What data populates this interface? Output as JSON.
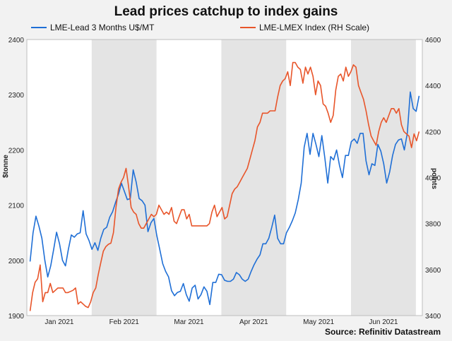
{
  "chart_data": {
    "type": "line",
    "title": "Lead prices catchup to index gains",
    "source": "Source: Refinitiv Datastream",
    "ylabel_left": "$tonne",
    "ylabel_right": "points",
    "ylim_left": [
      1900,
      2400
    ],
    "ylim_right": [
      3400,
      4600
    ],
    "yticks_left": [
      "1900",
      "2000",
      "2100",
      "2200",
      "2300",
      "2400"
    ],
    "yticks_right": [
      "3400",
      "3600",
      "3800",
      "4000",
      "4200",
      "4400",
      "4600"
    ],
    "x_labels": [
      "Jan 2021",
      "Feb 2021",
      "Mar 2021",
      "Apr 2021",
      "May 2021",
      "Jun 2021"
    ],
    "x_label_positions": [
      10,
      30,
      50,
      70,
      90,
      110
    ],
    "x_range": [
      0,
      122
    ],
    "shaded_ranges": [
      [
        20,
        40
      ],
      [
        60,
        80
      ],
      [
        100,
        120
      ]
    ],
    "series": [
      {
        "name": "LME-Lead 3 Months U$/MT",
        "color": "#1f6fd6",
        "axis": "left",
        "values": [
          1998,
          2050,
          2080,
          2062,
          2040,
          2000,
          1970,
          1990,
          2020,
          2051,
          2030,
          2000,
          1990,
          2020,
          2046,
          2042,
          2048,
          2050,
          2090,
          2048,
          2036,
          2020,
          2032,
          2018,
          2040,
          2056,
          2060,
          2078,
          2088,
          2105,
          2120,
          2140,
          2125,
          2110,
          2112,
          2164,
          2142,
          2112,
          2108,
          2100,
          2052,
          2068,
          2076,
          2045,
          2020,
          1994,
          1980,
          1970,
          1945,
          1936,
          1942,
          1944,
          1958,
          1938,
          1926,
          1950,
          1955,
          1930,
          1938,
          1952,
          1944,
          1920,
          1960,
          1960,
          1975,
          1974,
          1964,
          1962,
          1962,
          1966,
          1978,
          1974,
          1966,
          1962,
          1966,
          1980,
          1992,
          2002,
          2010,
          2030,
          2030,
          2040,
          2060,
          2082,
          2040,
          2030,
          2030,
          2050,
          2060,
          2072,
          2086,
          2110,
          2140,
          2205,
          2230,
          2192,
          2230,
          2210,
          2188,
          2226,
          2186,
          2140,
          2188,
          2182,
          2200,
          2172,
          2150,
          2190,
          2190,
          2215,
          2220,
          2212,
          2230,
          2230,
          2180,
          2155,
          2175,
          2172,
          2210,
          2198,
          2175,
          2140,
          2160,
          2190,
          2210,
          2218,
          2220,
          2200,
          2230,
          2305,
          2275,
          2270,
          2298
        ]
      },
      {
        "name": "LME-LMEX Index (RH Scale)",
        "color": "#e8552a",
        "axis": "right",
        "values": [
          3420,
          3500,
          3545,
          3560,
          3620,
          3460,
          3500,
          3500,
          3540,
          3500,
          3510,
          3520,
          3520,
          3520,
          3500,
          3500,
          3505,
          3510,
          3520,
          3450,
          3460,
          3450,
          3440,
          3435,
          3460,
          3500,
          3520,
          3580,
          3630,
          3680,
          3700,
          3710,
          3715,
          3760,
          3870,
          3950,
          3980,
          4000,
          4040,
          3960,
          3870,
          3850,
          3840,
          3800,
          3780,
          3780,
          3800,
          3820,
          3840,
          3830,
          3840,
          3880,
          3860,
          3840,
          3850,
          3840,
          3870,
          3810,
          3800,
          3830,
          3860,
          3860,
          3820,
          3840,
          3790,
          3790,
          3790,
          3790,
          3790,
          3790,
          3790,
          3800,
          3850,
          3880,
          3830,
          3850,
          3870,
          3820,
          3830,
          3880,
          3930,
          3950,
          3960,
          3980,
          4000,
          4020,
          4040,
          4080,
          4120,
          4160,
          4220,
          4240,
          4280,
          4280,
          4280,
          4290,
          4290,
          4290,
          4350,
          4400,
          4420,
          4430,
          4460,
          4400,
          4500,
          4500,
          4480,
          4470,
          4410,
          4480,
          4450,
          4480,
          4440,
          4360,
          4420,
          4400,
          4320,
          4310,
          4280,
          4240,
          4270,
          4380,
          4440,
          4450,
          4420,
          4480,
          4440,
          4460,
          4490,
          4480,
          4400,
          4370,
          4340,
          4290,
          4230,
          4180,
          4160,
          4140,
          4200,
          4240,
          4260,
          4240,
          4270,
          4300,
          4300,
          4280,
          4300,
          4230,
          4200,
          4190,
          4180,
          4130,
          4190,
          4160,
          4200
        ]
      }
    ]
  },
  "legend": {
    "s1": "LME-Lead 3 Months U$/MT",
    "s2": "LME-LMEX Index (RH Scale)"
  }
}
